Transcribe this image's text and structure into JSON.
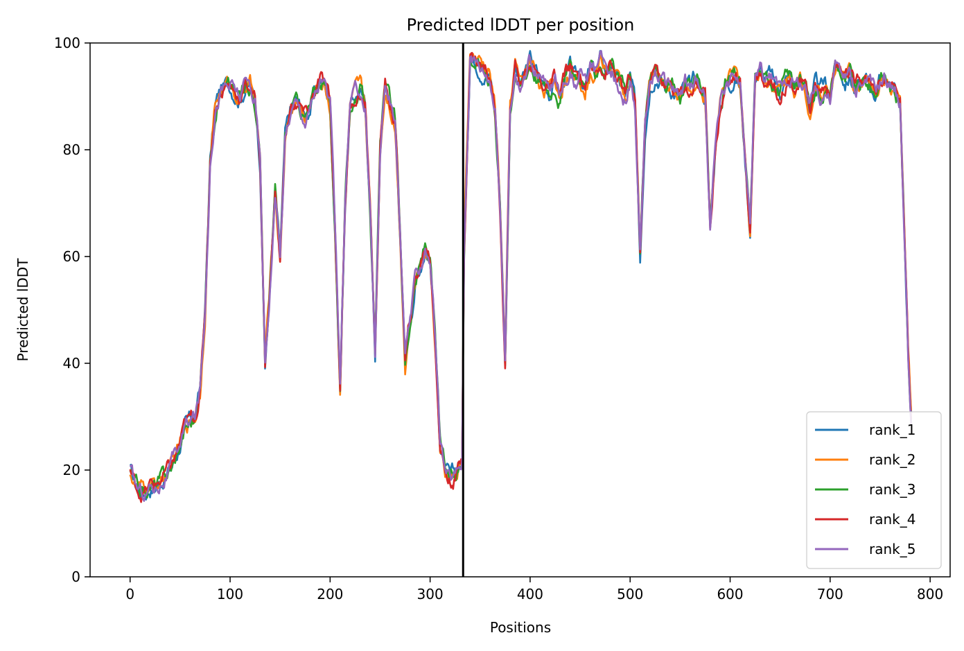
{
  "chart_data": {
    "type": "line",
    "title": "Predicted lDDT per position",
    "xlabel": "Positions",
    "ylabel": "Predicted lDDT",
    "xlim": [
      -40,
      820
    ],
    "ylim": [
      0,
      100
    ],
    "xticks": [
      0,
      100,
      200,
      300,
      400,
      500,
      600,
      700,
      800
    ],
    "yticks": [
      0,
      20,
      40,
      60,
      80,
      100
    ],
    "grid": false,
    "legend_position": "lower-right",
    "vline_x": 333,
    "base_curve": {
      "x": [
        0,
        5,
        10,
        15,
        20,
        25,
        30,
        35,
        40,
        45,
        50,
        55,
        60,
        65,
        70,
        75,
        80,
        85,
        90,
        95,
        100,
        105,
        110,
        115,
        120,
        125,
        130,
        135,
        140,
        145,
        150,
        155,
        160,
        165,
        170,
        175,
        180,
        185,
        190,
        195,
        200,
        205,
        210,
        215,
        220,
        225,
        230,
        235,
        240,
        245,
        250,
        255,
        260,
        265,
        270,
        275,
        280,
        285,
        290,
        295,
        300,
        305,
        310,
        315,
        320,
        325,
        332,
        334,
        340,
        345,
        350,
        355,
        360,
        365,
        370,
        375,
        380,
        385,
        390,
        395,
        400,
        405,
        410,
        415,
        420,
        425,
        430,
        435,
        440,
        445,
        450,
        455,
        460,
        465,
        470,
        475,
        480,
        485,
        490,
        495,
        500,
        505,
        510,
        515,
        520,
        525,
        530,
        535,
        540,
        545,
        550,
        555,
        560,
        565,
        570,
        575,
        580,
        585,
        590,
        595,
        600,
        605,
        610,
        615,
        620,
        625,
        630,
        635,
        640,
        645,
        650,
        655,
        660,
        665,
        670,
        675,
        680,
        685,
        690,
        695,
        700,
        705,
        710,
        715,
        720,
        725,
        730,
        735,
        740,
        745,
        750,
        755,
        760,
        765,
        770,
        775,
        778,
        781
      ],
      "y": [
        20,
        17,
        16,
        16,
        17,
        17,
        18,
        19,
        20,
        22,
        25,
        28,
        29,
        30,
        35,
        50,
        78,
        88,
        91,
        92,
        92,
        91,
        90,
        92,
        92,
        89,
        78,
        40,
        55,
        72,
        60,
        82,
        87,
        89,
        88,
        86,
        88,
        91,
        93,
        92,
        88,
        65,
        36,
        70,
        88,
        90,
        91,
        88,
        70,
        42,
        80,
        92,
        89,
        85,
        65,
        40,
        48,
        55,
        58,
        62,
        60,
        45,
        25,
        20,
        18,
        19,
        22,
        62,
        98,
        97,
        96,
        95,
        94,
        88,
        70,
        40,
        88,
        96,
        92,
        94,
        97,
        95,
        93,
        92,
        91,
        93,
        90,
        94,
        95,
        93,
        94,
        92,
        95,
        94,
        97,
        95,
        96,
        94,
        92,
        90,
        93,
        88,
        60,
        85,
        93,
        95,
        94,
        92,
        92,
        91,
        90,
        92,
        91,
        93,
        92,
        90,
        66,
        80,
        88,
        92,
        93,
        94,
        92,
        78,
        65,
        94,
        95,
        93,
        94,
        92,
        91,
        93,
        94,
        92,
        93,
        91,
        88,
        92,
        91,
        92,
        90,
        96,
        95,
        93,
        94,
        91,
        92,
        93,
        92,
        91,
        93,
        94,
        92,
        91,
        89,
        60,
        42,
        30
      ]
    },
    "series": [
      {
        "name": "rank_1",
        "color": "#1f77b4"
      },
      {
        "name": "rank_2",
        "color": "#ff7f0e"
      },
      {
        "name": "rank_3",
        "color": "#2ca02c"
      },
      {
        "name": "rank_4",
        "color": "#d62728"
      },
      {
        "name": "rank_5",
        "color": "#9467bd"
      }
    ]
  }
}
